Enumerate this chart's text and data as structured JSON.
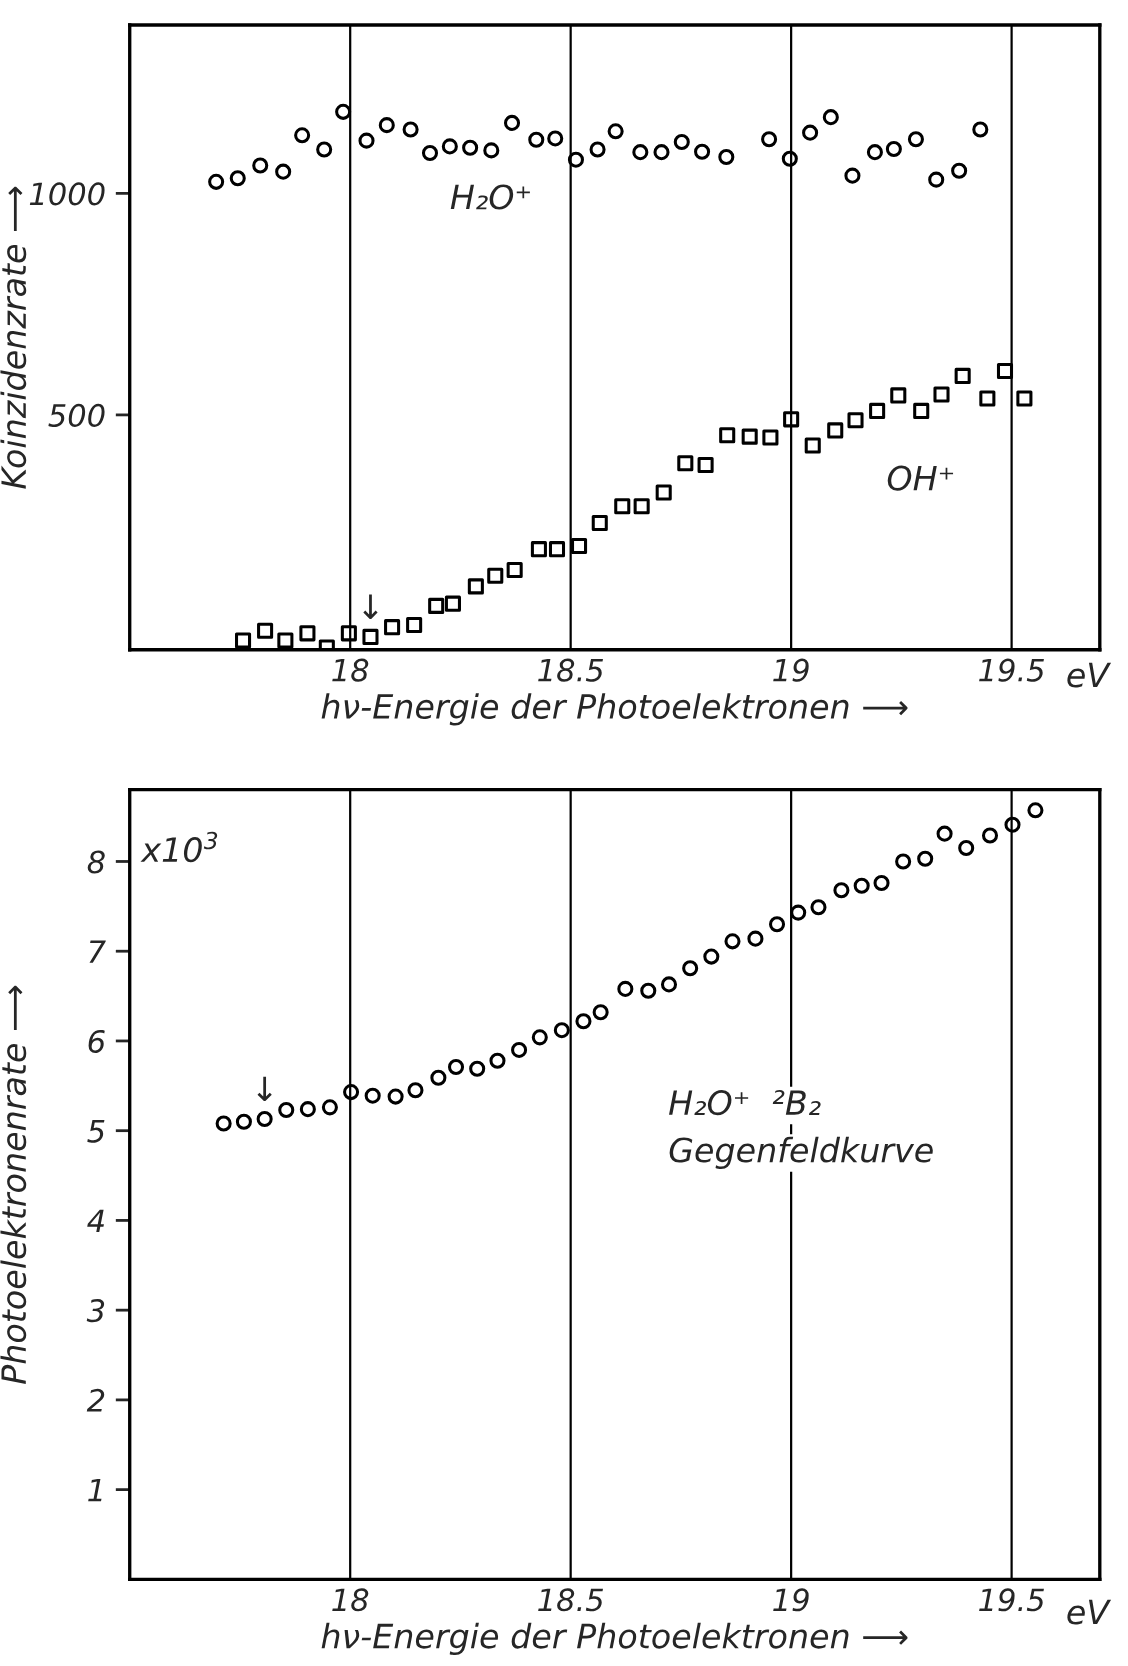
{
  "chart_data": [
    {
      "type": "scatter",
      "xlabel": "hν-Energie der Photoelektronen ⟶",
      "ylabel": "Koinzidenzrate ⟶",
      "xlim": [
        17.5,
        19.7
      ],
      "xticks": [
        18,
        18.5,
        19,
        19.5
      ],
      "ylim": [
        -30,
        1380
      ],
      "yticks": [
        500,
        1000
      ],
      "grid": "x",
      "series": [
        {
          "color": "#000000",
          "marker": "circle",
          "x": [
            17.696,
            17.745,
            17.796,
            17.848,
            17.891,
            17.941,
            17.984,
            18.037,
            18.083,
            18.137,
            18.181,
            18.226,
            18.272,
            18.32,
            18.367,
            18.422,
            18.465,
            18.512,
            18.561,
            18.602,
            18.658,
            18.706,
            18.752,
            18.798,
            18.853,
            18.95,
            18.997,
            19.043,
            19.09,
            19.139,
            19.19,
            19.233,
            19.283,
            19.329,
            19.381,
            19.429
          ],
          "values": [
            1026,
            1034,
            1063,
            1049,
            1131,
            1099,
            1184,
            1119,
            1154,
            1144,
            1091,
            1106,
            1103,
            1097,
            1159,
            1121,
            1124,
            1076,
            1099,
            1140,
            1093,
            1093,
            1116,
            1094,
            1082,
            1122,
            1078,
            1137,
            1172,
            1040,
            1093,
            1100,
            1122,
            1031,
            1051,
            1144
          ]
        },
        {
          "color": "#000000",
          "marker": "square",
          "x": [
            17.757,
            17.807,
            17.853,
            17.903,
            17.947,
            17.997,
            18.046,
            18.095,
            18.145,
            18.195,
            18.233,
            18.285,
            18.329,
            18.373,
            18.428,
            18.469,
            18.519,
            18.566,
            18.617,
            18.661,
            18.711,
            18.76,
            18.806,
            18.855,
            18.906,
            18.953,
            19.0,
            19.049,
            19.1,
            19.146,
            19.195,
            19.243,
            19.295,
            19.341,
            19.389,
            19.445,
            19.485,
            19.529
          ],
          "values": [
            -9,
            13,
            -9,
            7,
            -25,
            7,
            -1,
            21,
            26,
            69,
            74,
            113,
            137,
            150,
            197,
            197,
            204,
            256,
            294,
            294,
            325,
            391,
            387,
            454,
            451,
            449,
            490,
            431,
            465,
            488,
            509,
            544,
            509,
            546,
            588,
            537,
            599,
            537
          ]
        }
      ],
      "annotations": [
        "H₂O⁺",
        "OH⁺",
        {
          "text": "↓",
          "x": 18.046,
          "y": -1
        },
        "eV"
      ]
    },
    {
      "type": "scatter",
      "xlabel": "hν-Energie der Photoelektronen ⟶",
      "ylabel": "Photoelektronenrate ⟶",
      "xlim": [
        17.5,
        19.7
      ],
      "xticks": [
        18,
        18.5,
        19,
        19.5
      ],
      "ylim": [
        0,
        8.8
      ],
      "yticks": [
        1,
        2,
        3,
        4,
        5,
        6,
        7,
        8
      ],
      "grid": "x",
      "series": [
        {
          "color": "#000000",
          "marker": "circle",
          "x": [
            17.713,
            17.759,
            17.806,
            17.855,
            17.904,
            17.954,
            18.002,
            18.051,
            18.103,
            18.148,
            18.2,
            18.24,
            18.288,
            18.334,
            18.383,
            18.43,
            18.48,
            18.529,
            18.568,
            18.624,
            18.676,
            18.723,
            18.771,
            18.819,
            18.867,
            18.919,
            18.968,
            19.016,
            19.062,
            19.114,
            19.16,
            19.205,
            19.254,
            19.304,
            19.348,
            19.397,
            19.451,
            19.502,
            19.554
          ],
          "values": [
            5.08,
            5.1,
            5.13,
            5.23,
            5.24,
            5.26,
            5.43,
            5.39,
            5.38,
            5.45,
            5.59,
            5.71,
            5.69,
            5.78,
            5.9,
            6.04,
            6.12,
            6.22,
            6.32,
            6.58,
            6.56,
            6.63,
            6.81,
            6.94,
            7.11,
            7.14,
            7.3,
            7.43,
            7.49,
            7.68,
            7.73,
            7.76,
            8.0,
            8.03,
            8.31,
            8.15,
            8.29,
            8.41,
            8.57
          ]
        }
      ],
      "annotations": [
        "x10$^{3}$",
        "H₂O⁺  ²B₂",
        "Gegenfeldkurve",
        {
          "text": "↓",
          "x": 17.806,
          "y": 5.13
        },
        "eV"
      ]
    }
  ]
}
